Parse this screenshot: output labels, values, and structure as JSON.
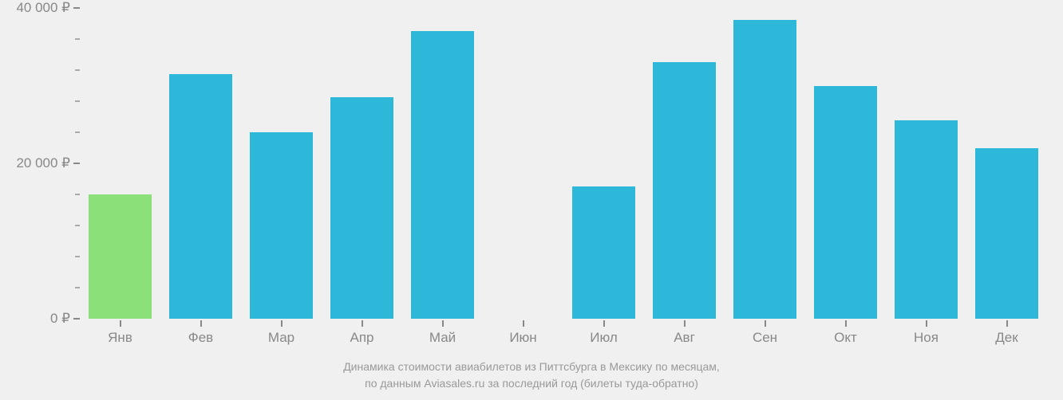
{
  "chart": {
    "type": "bar",
    "background_color": "#f0f0f0",
    "axis_color": "#888888",
    "tick_label_color": "#888888",
    "tick_label_fontsize": 17,
    "caption_color": "#999999",
    "caption_fontsize": 14,
    "ylim": [
      0,
      40000
    ],
    "y_major_ticks": [
      0,
      20000,
      40000
    ],
    "y_major_labels": [
      "0 ₽",
      "20 000 ₽",
      "40 000 ₽"
    ],
    "y_minor_step": 4000,
    "currency_symbol": "₽",
    "bar_width_ratio": 0.78,
    "highlight_color": "#8be07a",
    "bar_color": "#2db7d8",
    "categories": [
      "Янв",
      "Фев",
      "Мар",
      "Апр",
      "Май",
      "Июн",
      "Июл",
      "Авг",
      "Сен",
      "Окт",
      "Ноя",
      "Дек"
    ],
    "values": [
      16000,
      31500,
      24000,
      28500,
      37000,
      0,
      17000,
      33000,
      38500,
      30000,
      25500,
      22000
    ],
    "highlight_index": 0,
    "caption_line1": "Динамика стоимости авиабилетов из Питтсбурга в Мексику по месяцам,",
    "caption_line2": "по данным Aviasales.ru за последний год (билеты туда-обратно)"
  }
}
